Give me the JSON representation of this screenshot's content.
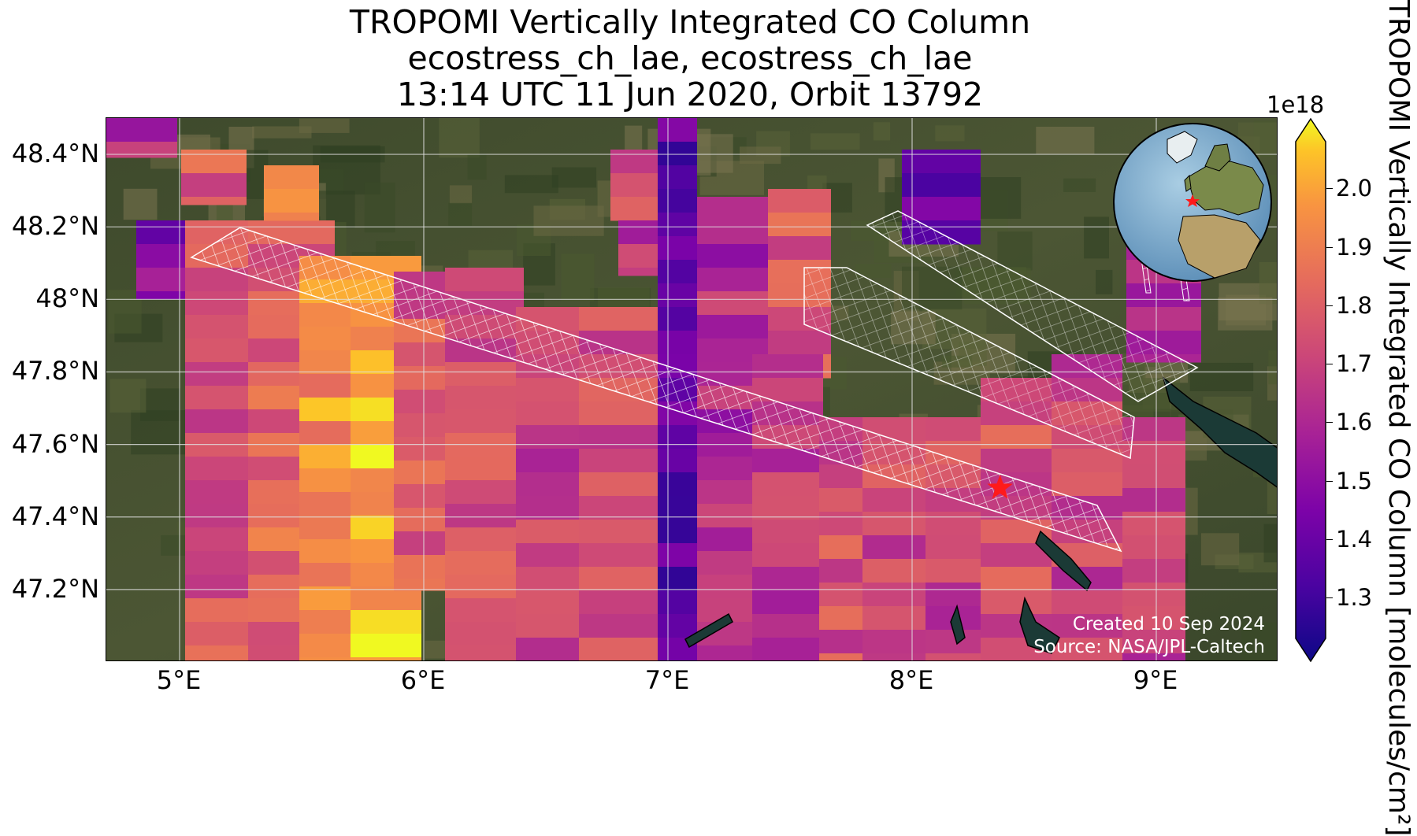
{
  "title": {
    "line1": "TROPOMI Vertically Integrated CO Column",
    "line2": "ecostress_ch_lae, ecostress_ch_lae",
    "line3": "13:14 UTC 11 Jun 2020, Orbit 13792"
  },
  "map": {
    "lon_range": [
      4.7,
      9.5
    ],
    "lat_range": [
      47.0,
      48.5
    ],
    "basemap": "satellite imagery",
    "grid": true,
    "target_marker": {
      "lon": 8.36,
      "lat": 47.48,
      "symbol": "red-star"
    },
    "lat_ticks": [
      {
        "value": 48.4,
        "label": "48.4°N"
      },
      {
        "value": 48.2,
        "label": "48.2°N"
      },
      {
        "value": 48.0,
        "label": "48°N"
      },
      {
        "value": 47.8,
        "label": "47.8°N"
      },
      {
        "value": 47.6,
        "label": "47.6°N"
      },
      {
        "value": 47.4,
        "label": "47.4°N"
      },
      {
        "value": 47.2,
        "label": "47.2°N"
      }
    ],
    "lon_ticks": [
      {
        "value": 5,
        "label": "5°E"
      },
      {
        "value": 6,
        "label": "6°E"
      },
      {
        "value": 7,
        "label": "7°E"
      },
      {
        "value": 8,
        "label": "8°E"
      },
      {
        "value": 9,
        "label": "9°E"
      }
    ]
  },
  "credits": {
    "created": "Created 10 Sep 2024",
    "source": "Source: NASA/JPL-Caltech"
  },
  "colorbar": {
    "colormap": "plasma",
    "range": [
      1.23,
      2.08
    ],
    "multiplier": "1e18",
    "label": "TROPOMI Vertically Integrated CO Column [molecules/cm²]",
    "ticks": [
      {
        "value": 2.0,
        "label": "2.0"
      },
      {
        "value": 1.9,
        "label": "1.9"
      },
      {
        "value": 1.8,
        "label": "1.8"
      },
      {
        "value": 1.7,
        "label": "1.7"
      },
      {
        "value": 1.6,
        "label": "1.6"
      },
      {
        "value": 1.5,
        "label": "1.5"
      },
      {
        "value": 1.4,
        "label": "1.4"
      },
      {
        "value": 1.3,
        "label": "1.3"
      }
    ]
  },
  "inset_globe": {
    "type": "orthographic locator",
    "marker": "red-star"
  },
  "colors": {
    "target_marker": "#ff1a1a",
    "footprint_outline": "#ffffff",
    "credit_text": "#ffffff"
  }
}
